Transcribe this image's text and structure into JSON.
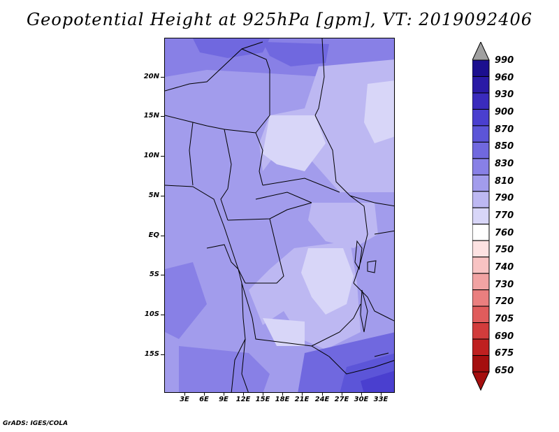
{
  "title": "Geopotential Height at 925hPa [gpm], VT: 2019092406",
  "credit": "GrADS: IGES/COLA",
  "map": {
    "lat_ticks": [
      "20N",
      "15N",
      "10N",
      "5N",
      "EQ",
      "5S",
      "10S",
      "15S"
    ],
    "lon_ticks": [
      "3E",
      "6E",
      "9E",
      "12E",
      "15E",
      "18E",
      "21E",
      "24E",
      "27E",
      "30E",
      "33E"
    ]
  },
  "colorbar": {
    "levels": [
      "990",
      "960",
      "930",
      "900",
      "870",
      "850",
      "830",
      "810",
      "790",
      "770",
      "760",
      "750",
      "740",
      "730",
      "720",
      "705",
      "690",
      "675",
      "650"
    ],
    "colors": [
      "#1c0f8f",
      "#2a1aa6",
      "#3a2bbd",
      "#4a3fcf",
      "#5c55d8",
      "#7068df",
      "#8880e6",
      "#a29cec",
      "#bdb8f2",
      "#d8d6f8",
      "#ffffff",
      "#fde2e2",
      "#f8c3c3",
      "#f2a3a3",
      "#ea7f7f",
      "#e05c5c",
      "#d23c3c",
      "#bf2020",
      "#a50f0f"
    ],
    "top_arrow_color": "#a0a0a0",
    "bottom_arrow_color": "#a50f0f"
  }
}
